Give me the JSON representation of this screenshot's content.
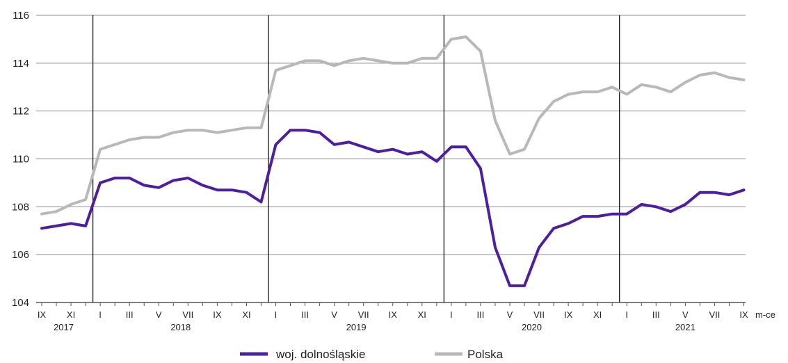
{
  "chart_data": {
    "type": "line",
    "x": [
      "IX 2017",
      "X 2017",
      "XI 2017",
      "XII 2017",
      "I 2018",
      "II 2018",
      "III 2018",
      "IV 2018",
      "V 2018",
      "VI 2018",
      "VII 2018",
      "VIII 2018",
      "IX 2018",
      "X 2018",
      "XI 2018",
      "XII 2018",
      "I 2019",
      "II 2019",
      "III 2019",
      "IV 2019",
      "V 2019",
      "VI 2019",
      "VII 2019",
      "VIII 2019",
      "IX 2019",
      "X 2019",
      "XI 2019",
      "XII 2019",
      "I 2020",
      "II 2020",
      "III 2020",
      "IV 2020",
      "V 2020",
      "VI 2020",
      "VII 2020",
      "VIII 2020",
      "IX 2020",
      "X 2020",
      "XI 2020",
      "XII 2020",
      "I 2021",
      "II 2021",
      "III 2021",
      "IV 2021",
      "V 2021",
      "VI 2021",
      "VII 2021",
      "VIII 2021",
      "IX 2021"
    ],
    "tick_labels": [
      "IX",
      "",
      "XI",
      "",
      "I",
      "",
      "III",
      "",
      "V",
      "",
      "VII",
      "",
      "IX",
      "",
      "XI",
      "",
      "I",
      "",
      "III",
      "",
      "V",
      "",
      "VII",
      "",
      "IX",
      "",
      "XI",
      "",
      "I",
      "",
      "III",
      "",
      "V",
      "",
      "VII",
      "",
      "IX",
      "",
      "XI",
      "",
      "I",
      "",
      "III",
      "",
      "V",
      "",
      "VII",
      "",
      "IX"
    ],
    "years": [
      {
        "label": "2017",
        "start": 0,
        "end": 3
      },
      {
        "label": "2018",
        "start": 4,
        "end": 15
      },
      {
        "label": "2019",
        "start": 16,
        "end": 27
      },
      {
        "label": "2020",
        "start": 28,
        "end": 39
      },
      {
        "label": "2021",
        "start": 40,
        "end": 48
      }
    ],
    "year_boundaries": [
      3.5,
      15.5,
      27.5,
      39.5
    ],
    "series": [
      {
        "name": "woj. dolnośląskie",
        "color": "#4b1fa0",
        "values": [
          107.1,
          107.2,
          107.3,
          107.2,
          109.0,
          109.2,
          109.2,
          108.9,
          108.8,
          109.1,
          109.2,
          108.9,
          108.7,
          108.7,
          108.6,
          108.2,
          110.6,
          111.2,
          111.2,
          111.1,
          110.6,
          110.7,
          110.5,
          110.3,
          110.4,
          110.2,
          110.3,
          109.9,
          110.5,
          110.5,
          109.6,
          106.3,
          104.7,
          104.7,
          106.3,
          107.1,
          107.3,
          107.6,
          107.6,
          107.7,
          107.7,
          108.1,
          108.0,
          107.8,
          108.1,
          108.6,
          108.6,
          108.5,
          108.7
        ]
      },
      {
        "name": "Polska",
        "color": "#b8b8b8",
        "values": [
          107.7,
          107.8,
          108.1,
          108.3,
          110.4,
          110.6,
          110.8,
          110.9,
          110.9,
          111.1,
          111.2,
          111.2,
          111.1,
          111.2,
          111.3,
          111.3,
          113.7,
          113.9,
          114.1,
          114.1,
          113.9,
          114.1,
          114.2,
          114.1,
          114.0,
          114.0,
          114.2,
          114.2,
          115.0,
          115.1,
          114.5,
          111.6,
          110.2,
          110.4,
          111.7,
          112.4,
          112.7,
          112.8,
          112.8,
          113.0,
          112.7,
          113.1,
          113.0,
          112.8,
          113.2,
          113.5,
          113.6,
          113.4,
          113.3
        ]
      }
    ],
    "y_ticks": [
      104,
      106,
      108,
      110,
      112,
      114,
      116
    ],
    "ylim": [
      104,
      116
    ],
    "grid": true,
    "x_unit_label": "m-ce",
    "legend_position": "bottom-center"
  }
}
